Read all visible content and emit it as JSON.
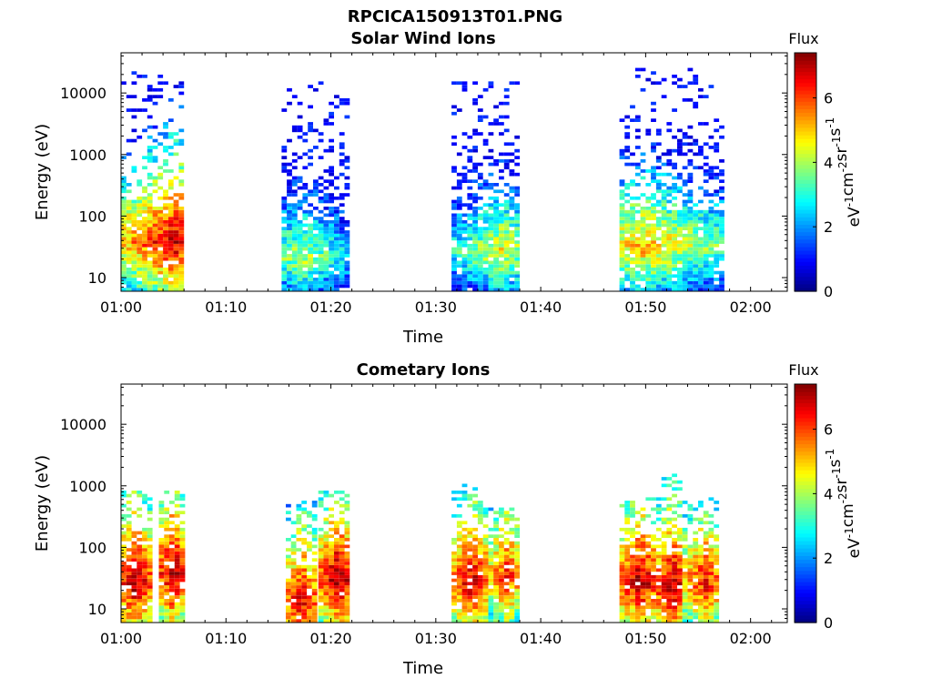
{
  "figure": {
    "title": "RPCICA150913T01.PNG"
  },
  "colorbar": {
    "label": "Flux",
    "unit_parts": [
      "eV",
      "-1",
      "cm",
      "-2",
      "sr",
      "-1",
      "s",
      "-1"
    ],
    "range": [
      0,
      7.4
    ],
    "ticks": [
      "0",
      "2",
      "4",
      "6"
    ],
    "colormap": "jet"
  },
  "chart_data": [
    {
      "type": "heatmap",
      "title": "Solar Wind Ions",
      "xlabel": "Time",
      "ylabel": "Energy (eV)",
      "x_ticks": [
        "01:00",
        "01:10",
        "01:20",
        "01:30",
        "01:40",
        "01:50",
        "02:00"
      ],
      "y_ticks": [
        "10",
        "100",
        "1000",
        "10000"
      ],
      "y_scale": "log",
      "xlim_minutes": [
        0,
        63.5
      ],
      "ylim": [
        6,
        45000
      ],
      "grid": false,
      "bursts": [
        {
          "start_min": 0.0,
          "end_min": 5.7,
          "core_min": 4.8,
          "energy_peak": 35,
          "flux_peak": 6.9,
          "max_energy": 20000
        },
        {
          "start_min": 15.3,
          "end_min": 21.5,
          "core_min": 17.0,
          "energy_peak": 20,
          "flux_peak": 4.2,
          "max_energy": 17000
        },
        {
          "start_min": 31.5,
          "end_min": 37.7,
          "core_min": 36.0,
          "energy_peak": 25,
          "flux_peak": 4.6,
          "max_energy": 15000
        },
        {
          "start_min": 47.5,
          "end_min": 57.2,
          "core_min": 49.5,
          "energy_peak": 30,
          "flux_peak": 5.2,
          "max_energy": 25000
        }
      ]
    },
    {
      "type": "heatmap",
      "title": "Cometary Ions",
      "xlabel": "Time",
      "ylabel": "Energy (eV)",
      "x_ticks": [
        "01:00",
        "01:10",
        "01:20",
        "01:30",
        "01:40",
        "01:50",
        "02:00"
      ],
      "y_ticks": [
        "10",
        "100",
        "1000",
        "10000"
      ],
      "y_scale": "log",
      "xlim_minutes": [
        0,
        63.5
      ],
      "ylim": [
        6,
        45000
      ],
      "grid": false,
      "bursts": [
        {
          "start_min": 0.0,
          "end_min": 2.8,
          "core_min": 1.0,
          "energy_peak": 25,
          "flux_peak": 7.2,
          "max_energy": 900
        },
        {
          "start_min": 3.6,
          "end_min": 5.8,
          "core_min": 4.7,
          "energy_peak": 35,
          "flux_peak": 7.3,
          "max_energy": 800
        },
        {
          "start_min": 15.7,
          "end_min": 18.7,
          "core_min": 17.0,
          "energy_peak": 12,
          "flux_peak": 6.8,
          "max_energy": 600
        },
        {
          "start_min": 18.8,
          "end_min": 21.7,
          "core_min": 20.5,
          "energy_peak": 28,
          "flux_peak": 7.3,
          "max_energy": 800
        },
        {
          "start_min": 31.5,
          "end_min": 35.0,
          "core_min": 33.2,
          "energy_peak": 25,
          "flux_peak": 6.9,
          "max_energy": 1000
        },
        {
          "start_min": 35.0,
          "end_min": 37.8,
          "core_min": 36.5,
          "energy_peak": 30,
          "flux_peak": 6.4,
          "max_energy": 400
        },
        {
          "start_min": 47.5,
          "end_min": 51.0,
          "core_min": 49.2,
          "energy_peak": 25,
          "flux_peak": 7.1,
          "max_energy": 600
        },
        {
          "start_min": 51.0,
          "end_min": 53.5,
          "core_min": 52.3,
          "energy_peak": 20,
          "flux_peak": 7.3,
          "max_energy": 1600
        },
        {
          "start_min": 53.5,
          "end_min": 57.0,
          "core_min": 55.4,
          "energy_peak": 25,
          "flux_peak": 6.5,
          "max_energy": 600
        }
      ]
    }
  ]
}
